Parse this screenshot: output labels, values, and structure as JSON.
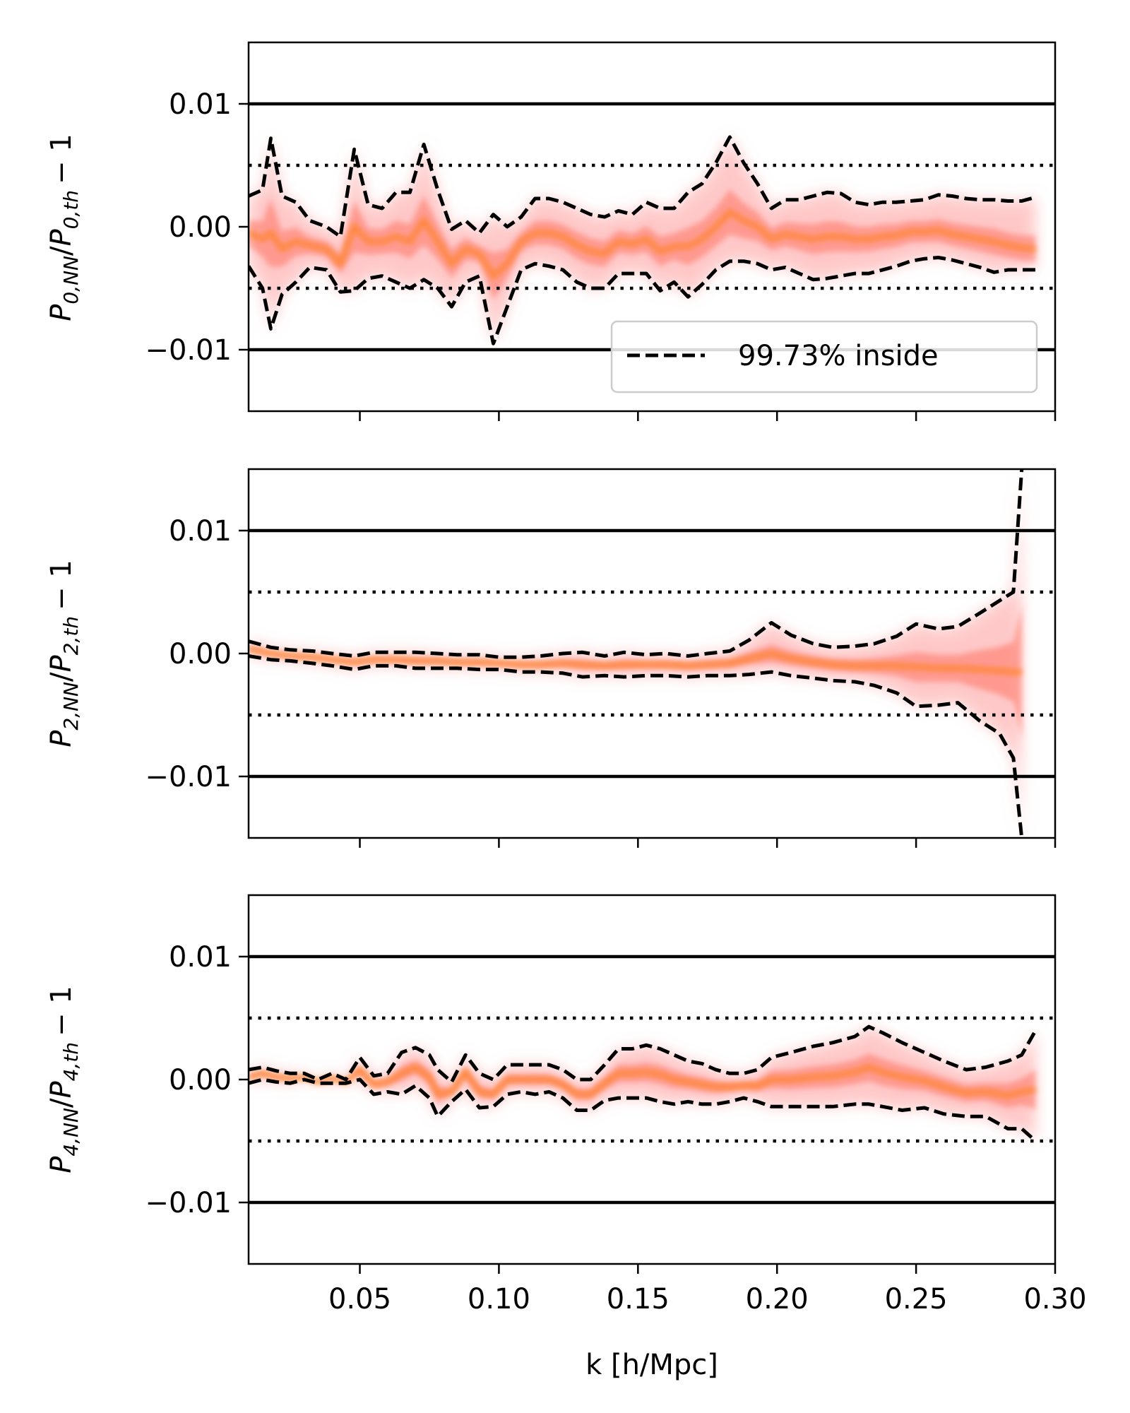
{
  "chart_data": {
    "type": "line",
    "xlabel": "k [h/Mpc]",
    "xlim": [
      0.01,
      0.3
    ],
    "x_ticks": [
      0.05,
      0.1,
      0.15,
      0.2,
      0.25,
      0.3
    ],
    "x_tick_labels": [
      "0.05",
      "0.10",
      "0.15",
      "0.20",
      "0.25",
      "0.30"
    ],
    "ylim": [
      -0.015,
      0.015
    ],
    "y_ticks": [
      0.01,
      0.0,
      -0.01
    ],
    "y_tick_labels": [
      "0.01",
      "0.00",
      "−0.01"
    ],
    "reference_lines": {
      "solid": [
        0.01,
        -0.01
      ],
      "dotted": [
        0.005,
        -0.005
      ]
    },
    "legend": {
      "label": "99.73% inside",
      "location": "lower right",
      "panel": 0
    },
    "colors": {
      "band_outer": "#ff9a9a",
      "band_core": "#ff7f0e",
      "bound_line": "#000000"
    },
    "panels": [
      {
        "ylabel_main": "P",
        "ylabel_sub1": "0,NN",
        "ylabel_sub2": "0,th",
        "ylabel_tail": "− 1",
        "x": [
          0.01,
          0.015,
          0.018,
          0.022,
          0.027,
          0.032,
          0.038,
          0.043,
          0.048,
          0.053,
          0.058,
          0.063,
          0.068,
          0.073,
          0.078,
          0.083,
          0.088,
          0.093,
          0.098,
          0.103,
          0.108,
          0.113,
          0.118,
          0.123,
          0.128,
          0.133,
          0.138,
          0.143,
          0.148,
          0.153,
          0.158,
          0.163,
          0.168,
          0.173,
          0.178,
          0.183,
          0.188,
          0.193,
          0.198,
          0.203,
          0.208,
          0.213,
          0.218,
          0.223,
          0.228,
          0.233,
          0.238,
          0.243,
          0.248,
          0.253,
          0.258,
          0.263,
          0.268,
          0.273,
          0.278,
          0.283,
          0.288,
          0.293
        ],
        "upper": [
          0.0025,
          0.003,
          0.0072,
          0.0025,
          0.002,
          0.0005,
          0.0,
          -0.0008,
          0.0063,
          0.0018,
          0.0015,
          0.0028,
          0.0028,
          0.0067,
          0.003,
          -0.0002,
          0.0005,
          -0.0005,
          0.001,
          0.0,
          0.0008,
          0.0023,
          0.0023,
          0.002,
          0.0015,
          0.001,
          0.0008,
          0.0013,
          0.001,
          0.002,
          0.0015,
          0.0015,
          0.0028,
          0.0035,
          0.0052,
          0.0073,
          0.0052,
          0.0035,
          0.0015,
          0.0022,
          0.0022,
          0.0025,
          0.0028,
          0.0027,
          0.002,
          0.0018,
          0.002,
          0.002,
          0.0021,
          0.0022,
          0.0026,
          0.0025,
          0.0023,
          0.0022,
          0.0022,
          0.0021,
          0.0021,
          0.0024
        ],
        "lower": [
          -0.0032,
          -0.005,
          -0.0083,
          -0.0055,
          -0.0045,
          -0.0033,
          -0.0035,
          -0.0053,
          -0.0052,
          -0.0042,
          -0.004,
          -0.0045,
          -0.005,
          -0.0043,
          -0.005,
          -0.0065,
          -0.0045,
          -0.004,
          -0.0095,
          -0.0065,
          -0.0035,
          -0.003,
          -0.0032,
          -0.0035,
          -0.0045,
          -0.005,
          -0.005,
          -0.0038,
          -0.0038,
          -0.0038,
          -0.0052,
          -0.0045,
          -0.0057,
          -0.0047,
          -0.0035,
          -0.0028,
          -0.0028,
          -0.003,
          -0.0035,
          -0.0033,
          -0.0038,
          -0.0043,
          -0.0042,
          -0.004,
          -0.0038,
          -0.0038,
          -0.0035,
          -0.0032,
          -0.0028,
          -0.0026,
          -0.0025,
          -0.0027,
          -0.003,
          -0.0033,
          -0.0037,
          -0.0035,
          -0.0035,
          -0.0035
        ],
        "center": [
          -0.0005,
          -0.001,
          -0.0005,
          -0.0018,
          -0.0012,
          -0.0015,
          -0.0018,
          -0.003,
          0.0,
          -0.0012,
          -0.0012,
          -0.0008,
          -0.0012,
          0.0005,
          -0.0012,
          -0.003,
          -0.0018,
          -0.0022,
          -0.004,
          -0.003,
          -0.0012,
          -0.0005,
          -0.0005,
          -0.0008,
          -0.0015,
          -0.002,
          -0.0022,
          -0.0012,
          -0.0014,
          -0.001,
          -0.002,
          -0.0016,
          -0.0016,
          -0.001,
          0.0,
          0.0012,
          0.0005,
          0.0,
          -0.001,
          -0.0006,
          -0.0008,
          -0.001,
          -0.0008,
          -0.0008,
          -0.001,
          -0.001,
          -0.0008,
          -0.0007,
          -0.0004,
          -0.0004,
          -0.0003,
          -0.0006,
          -0.0008,
          -0.001,
          -0.0012,
          -0.0015,
          -0.0017,
          -0.0018
        ]
      },
      {
        "ylabel_main": "P",
        "ylabel_sub1": "2,NN",
        "ylabel_sub2": "2,th",
        "ylabel_tail": "− 1",
        "x": [
          0.01,
          0.018,
          0.025,
          0.033,
          0.04,
          0.048,
          0.055,
          0.063,
          0.07,
          0.078,
          0.085,
          0.093,
          0.1,
          0.108,
          0.115,
          0.123,
          0.13,
          0.138,
          0.145,
          0.153,
          0.16,
          0.168,
          0.175,
          0.183,
          0.19,
          0.198,
          0.205,
          0.213,
          0.22,
          0.228,
          0.235,
          0.243,
          0.25,
          0.258,
          0.265,
          0.273,
          0.28,
          0.285,
          0.288
        ],
        "upper": [
          0.001,
          0.0005,
          0.0003,
          0.0002,
          0.0,
          -0.0002,
          0.0001,
          0.0001,
          0.0001,
          0.0,
          -0.0001,
          -0.0001,
          -0.0003,
          -0.0003,
          -0.0002,
          0.0,
          0.0001,
          -0.0002,
          0.0001,
          -0.0001,
          0.0,
          -0.0002,
          0.0,
          0.0002,
          0.0011,
          0.0025,
          0.0015,
          0.0008,
          0.0005,
          0.0006,
          0.0008,
          0.0014,
          0.0024,
          0.002,
          0.0022,
          0.0033,
          0.0043,
          0.005,
          0.015
        ],
        "lower": [
          -0.0002,
          -0.0005,
          -0.0006,
          -0.0008,
          -0.001,
          -0.0013,
          -0.001,
          -0.001,
          -0.0012,
          -0.0012,
          -0.0012,
          -0.0013,
          -0.0013,
          -0.0015,
          -0.0015,
          -0.0016,
          -0.0019,
          -0.0018,
          -0.0019,
          -0.0018,
          -0.0018,
          -0.0019,
          -0.0018,
          -0.0018,
          -0.0017,
          -0.0015,
          -0.0018,
          -0.002,
          -0.0022,
          -0.0023,
          -0.0026,
          -0.0032,
          -0.0043,
          -0.0042,
          -0.004,
          -0.0055,
          -0.0065,
          -0.0085,
          -0.015
        ],
        "center": [
          0.0004,
          0.0,
          -0.0002,
          -0.0003,
          -0.0005,
          -0.0007,
          -0.0005,
          -0.0005,
          -0.0006,
          -0.0006,
          -0.0007,
          -0.0007,
          -0.0008,
          -0.0009,
          -0.0009,
          -0.0008,
          -0.0009,
          -0.001,
          -0.0009,
          -0.0009,
          -0.0009,
          -0.001,
          -0.0009,
          -0.0008,
          -0.0004,
          0.0,
          -0.0004,
          -0.0007,
          -0.0009,
          -0.001,
          -0.001,
          -0.001,
          -0.0011,
          -0.0012,
          -0.0012,
          -0.0013,
          -0.0014,
          -0.0015,
          -0.0015
        ]
      },
      {
        "ylabel_main": "P",
        "ylabel_sub1": "4,NN",
        "ylabel_sub2": "4,th",
        "ylabel_tail": "− 1",
        "x": [
          0.01,
          0.015,
          0.02,
          0.025,
          0.03,
          0.035,
          0.04,
          0.045,
          0.05,
          0.055,
          0.06,
          0.065,
          0.07,
          0.075,
          0.078,
          0.083,
          0.088,
          0.093,
          0.098,
          0.103,
          0.108,
          0.113,
          0.118,
          0.123,
          0.128,
          0.133,
          0.138,
          0.143,
          0.148,
          0.153,
          0.158,
          0.163,
          0.168,
          0.173,
          0.178,
          0.183,
          0.188,
          0.193,
          0.198,
          0.205,
          0.213,
          0.22,
          0.228,
          0.233,
          0.238,
          0.245,
          0.253,
          0.26,
          0.268,
          0.275,
          0.283,
          0.288,
          0.293
        ],
        "upper": [
          0.0008,
          0.001,
          0.0007,
          0.0005,
          0.0005,
          0.0,
          0.0005,
          0.0,
          0.0018,
          0.0003,
          0.0005,
          0.0022,
          0.0026,
          0.002,
          0.0008,
          -0.0002,
          0.002,
          0.0005,
          0.0,
          0.0012,
          0.0012,
          0.0012,
          0.0012,
          0.0008,
          0.0,
          0.0,
          0.0012,
          0.0025,
          0.0025,
          0.0028,
          0.0025,
          0.002,
          0.0015,
          0.0013,
          0.0008,
          0.0005,
          0.0005,
          0.0008,
          0.0018,
          0.0022,
          0.0027,
          0.003,
          0.0035,
          0.0043,
          0.0038,
          0.003,
          0.0022,
          0.0015,
          0.0008,
          0.001,
          0.0015,
          0.002,
          0.004
        ],
        "lower": [
          -0.0003,
          0.0,
          -0.0002,
          -0.0003,
          0.0,
          -0.0003,
          -0.0003,
          -0.0003,
          0.0,
          -0.0012,
          -0.001,
          -0.0012,
          -0.0005,
          -0.0015,
          -0.003,
          -0.0018,
          -0.0008,
          -0.0023,
          -0.0022,
          -0.0012,
          -0.001,
          -0.0012,
          -0.001,
          -0.0015,
          -0.0025,
          -0.0025,
          -0.0017,
          -0.0015,
          -0.0015,
          -0.0015,
          -0.0018,
          -0.002,
          -0.0018,
          -0.002,
          -0.002,
          -0.0018,
          -0.0015,
          -0.0018,
          -0.0022,
          -0.0022,
          -0.0022,
          -0.0022,
          -0.002,
          -0.002,
          -0.0022,
          -0.0025,
          -0.0023,
          -0.0028,
          -0.003,
          -0.003,
          -0.004,
          -0.004,
          -0.005
        ],
        "center": [
          0.0002,
          0.0005,
          0.0002,
          0.0001,
          0.0002,
          -0.0002,
          0.0001,
          -0.0002,
          0.0008,
          -0.0004,
          -0.0002,
          0.0005,
          0.001,
          0.0002,
          -0.0012,
          -0.001,
          0.0006,
          -0.001,
          -0.0012,
          0.0,
          0.0,
          0.0,
          0.0,
          -0.0004,
          -0.0012,
          -0.0012,
          -0.0003,
          0.0005,
          0.0005,
          0.0006,
          0.0004,
          0.0,
          -0.0002,
          -0.0004,
          -0.0006,
          -0.0006,
          -0.0005,
          -0.0005,
          0.0,
          0.0,
          0.0002,
          0.0003,
          0.0006,
          0.001,
          0.0006,
          0.0002,
          -0.0001,
          -0.0006,
          -0.0011,
          -0.001,
          -0.0013,
          -0.001,
          -0.0008
        ]
      }
    ]
  }
}
